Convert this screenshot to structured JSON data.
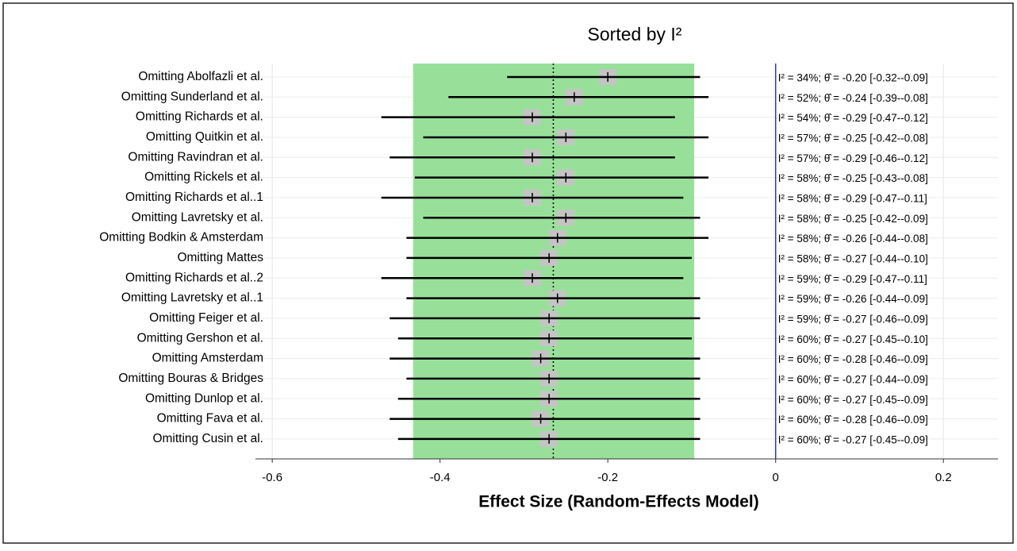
{
  "chart_data": {
    "type": "forest",
    "title": "Sorted by I²",
    "x_label": "Effect Size (Random-Effects Model)",
    "categories": [
      "Omitting Abolfazli et al.",
      "Omitting Sunderland et al.",
      "Omitting Richards et al.",
      "Omitting Quitkin et al.",
      "Omitting Ravindran et al.",
      "Omitting Rickels et al.",
      "Omitting Richards et al..1",
      "Omitting Lavretsky et al.",
      "Omitting Bodkin & Amsterdam",
      "Omitting Mattes",
      "Omitting Richards et al..2",
      "Omitting Lavretsky et al..1",
      "Omitting Feiger et al.",
      "Omitting Gershon et al.",
      "Omitting Amsterdam",
      "Omitting Bouras & Bridges",
      "Omitting Dunlop et al.",
      "Omitting Fava et al.",
      "Omitting Cusin et al."
    ],
    "values": [
      -0.2,
      -0.24,
      -0.29,
      -0.25,
      -0.29,
      -0.25,
      -0.29,
      -0.25,
      -0.26,
      -0.27,
      -0.29,
      -0.26,
      -0.27,
      -0.27,
      -0.28,
      -0.27,
      -0.27,
      -0.28,
      -0.27
    ],
    "lower": [
      -0.32,
      -0.39,
      -0.47,
      -0.42,
      -0.46,
      -0.43,
      -0.47,
      -0.42,
      -0.44,
      -0.44,
      -0.47,
      -0.44,
      -0.46,
      -0.45,
      -0.46,
      -0.44,
      -0.45,
      -0.46,
      -0.45
    ],
    "upper": [
      -0.09,
      -0.08,
      -0.12,
      -0.08,
      -0.12,
      -0.08,
      -0.11,
      -0.09,
      -0.08,
      -0.1,
      -0.11,
      -0.09,
      -0.09,
      -0.1,
      -0.09,
      -0.09,
      -0.09,
      -0.09,
      -0.09
    ],
    "value_labels": [
      "I² = 34%; θ̂ = -0.20 [-0.32--0.09]",
      "I² = 52%; θ̂ = -0.24 [-0.39--0.08]",
      "I² = 54%; θ̂ = -0.29 [-0.47--0.12]",
      "I² = 57%; θ̂ = -0.25 [-0.42--0.08]",
      "I² = 57%; θ̂ = -0.29 [-0.46--0.12]",
      "I² = 58%; θ̂ = -0.25 [-0.43--0.08]",
      "I² = 58%; θ̂ = -0.29 [-0.47--0.11]",
      "I² = 58%; θ̂ = -0.25 [-0.42--0.09]",
      "I² = 58%; θ̂ = -0.26 [-0.44--0.08]",
      "I² = 58%; θ̂ = -0.27 [-0.44--0.10]",
      "I² = 59%; θ̂ = -0.29 [-0.47--0.11]",
      "I² = 59%; θ̂ = -0.26 [-0.44--0.09]",
      "I² = 59%; θ̂ = -0.27 [-0.46--0.09]",
      "I² = 60%; θ̂ = -0.27 [-0.45--0.10]",
      "I² = 60%; θ̂ = -0.28 [-0.46--0.09]",
      "I² = 60%; θ̂ = -0.27 [-0.44--0.09]",
      "I² = 60%; θ̂ = -0.27 [-0.45--0.09]",
      "I² = 60%; θ̂ = -0.28 [-0.46--0.09]",
      "I² = 60%; θ̂ = -0.27 [-0.45--0.09]"
    ],
    "summary_ci": [
      -0.432,
      -0.097
    ],
    "summary_estimate": -0.265,
    "reference_line": 0,
    "band_color": "#98e09a",
    "box_color": "#c4c4c4",
    "line_color": "#000000",
    "reference_color": "#2b3bb0",
    "xlim": [
      -0.62,
      0.265
    ],
    "xticks": [
      -0.6,
      -0.4,
      -0.2,
      0.0,
      0.2
    ],
    "grid": true
  }
}
